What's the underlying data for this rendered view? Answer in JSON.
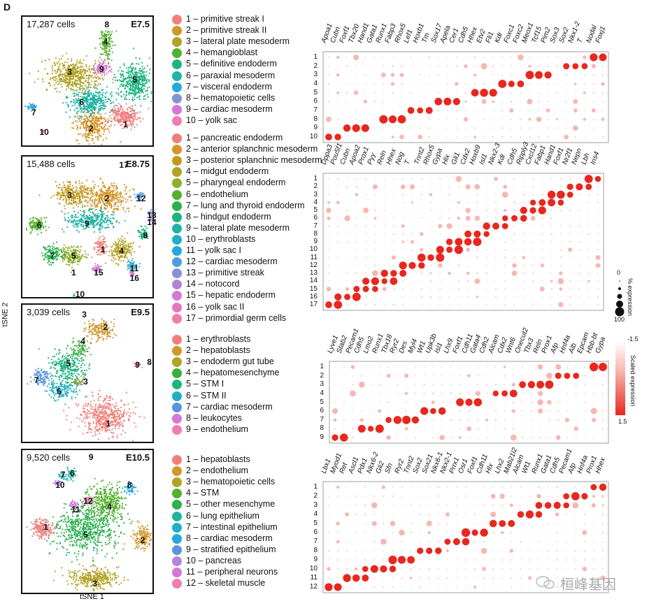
{
  "figure": {
    "panel_letter": "D",
    "axis_y": "tSNE 2",
    "axis_x": "tSNE  1",
    "watermark": "桓峰基因",
    "colors": {
      "red": "#e8271e",
      "light": "#f5b8b1"
    }
  },
  "panels": [
    {
      "cells": "17,287 cells",
      "stage": "E7.5",
      "clusters": [
        {
          "label": "1 – primitive streak I",
          "color": "#f07f7b"
        },
        {
          "label": "2 – primitive streak II",
          "color": "#d4952a"
        },
        {
          "label": "3 – lateral plate mesoderm",
          "color": "#b3a326"
        },
        {
          "label": "4 – hemangioblast",
          "color": "#55b02f"
        },
        {
          "label": "5 – definitive endoderm",
          "color": "#1fb47e"
        },
        {
          "label": "6 – paraxial mesoderm",
          "color": "#20b3a6"
        },
        {
          "label": "7 – visceral endoderm",
          "color": "#26a8dc"
        },
        {
          "label": "8 – hematopoietic cells",
          "color": "#8692d8"
        },
        {
          "label": "9 – cardiac mesoderm",
          "color": "#d576d8"
        },
        {
          "label": "10 – yolk sac",
          "color": "#ee7fb0"
        }
      ],
      "genes": [
        "Apoa1",
        "Cubn",
        "Foxf1",
        "Tbx20",
        "Hand1",
        "Gata1",
        "Runx1",
        "Fabp3",
        "Rhox5",
        "Lef1",
        "Hoxb1",
        "Tm",
        "Sox17",
        "Apela",
        "Cer1",
        "Cdh5",
        "Hhex",
        "Etv2",
        "Fli1",
        "Kdr",
        "Foxc1",
        "Foxc2",
        "Meox1",
        "Tcf15",
        "Pim2",
        "Sox3",
        "Sox2",
        "Nkx1-2",
        "T",
        "Nodal",
        "Foxj1"
      ],
      "rows": [
        "1",
        "2",
        "3",
        "4",
        "5",
        "6",
        "7",
        "8",
        "9",
        "10"
      ],
      "tsne_labels": [
        {
          "t": "8"
        },
        {
          "t": "4"
        },
        {
          "t": "9"
        },
        {
          "t": "3"
        },
        {
          "t": "5"
        },
        {
          "t": "6"
        },
        {
          "t": "7"
        },
        {
          "t": "2"
        },
        {
          "t": "1"
        },
        {
          "t": "10"
        }
      ]
    },
    {
      "cells": "15,488 cells",
      "stage": "E8.75",
      "clusters": [
        {
          "label": "1 – pancreatic endoderm",
          "color": "#f07f7b"
        },
        {
          "label": "2 – anterior splanchnic mesoderm",
          "color": "#d4952a"
        },
        {
          "label": "3 – posterior splanchnic mesoderm",
          "color": "#c19a22"
        },
        {
          "label": "4 – midgut endoderm",
          "color": "#b3a326"
        },
        {
          "label": "5 – pharyngeal endoderm",
          "color": "#8fae2b"
        },
        {
          "label": "6 – endothelium",
          "color": "#55b02f"
        },
        {
          "label": "7 – lung and thyroid endoderm",
          "color": "#2db04f"
        },
        {
          "label": "8 – hindgut endoderm",
          "color": "#1fb47e"
        },
        {
          "label": "9 – lateral plate mesoderm",
          "color": "#20b3a6"
        },
        {
          "label": "10 – erythroblasts",
          "color": "#22aec5"
        },
        {
          "label": "11 – yolk sac I",
          "color": "#26a8dc"
        },
        {
          "label": "12 – cardiac mesoderm",
          "color": "#4d9ee0"
        },
        {
          "label": "13 – primitive streak",
          "color": "#8692d8"
        },
        {
          "label": "14 – notocord",
          "color": "#b285dc"
        },
        {
          "label": "15 – hepatic endoderm",
          "color": "#d576d8"
        },
        {
          "label": "16 – yolk sac II",
          "color": "#e775c0"
        },
        {
          "label": "17 – primordial germ cells",
          "color": "#ee7fa6"
        }
      ],
      "genes": [
        "Dppa3",
        "Pou5f1",
        "Cubn",
        "Apoa2",
        "Prox1",
        "Pyy",
        "Reln",
        "Hhex",
        "Nog",
        "T",
        "Tnnt2",
        "Rhox5",
        "Gypa",
        "Hlx",
        "Gli1",
        "Cdx2",
        "Hoxb9",
        "Isl1",
        "Nkx2-3",
        "Kdr",
        "Cdh5",
        "Ripply3",
        "Cxcl12",
        "Fabp1",
        "Hand1",
        "Foxf1",
        "Nr2f1",
        "Nepn",
        "Lbh",
        "Ins4"
      ],
      "rows": [
        "1",
        "2",
        "3",
        "4",
        "5",
        "6",
        "7",
        "8",
        "9",
        "10",
        "11",
        "12",
        "13",
        "14",
        "15",
        "16",
        "17"
      ],
      "tsne_labels": [
        {
          "t": "17"
        },
        {
          "t": "3"
        },
        {
          "t": "2"
        },
        {
          "t": "12"
        },
        {
          "t": "13"
        },
        {
          "t": "14"
        },
        {
          "t": "6"
        },
        {
          "t": "9"
        },
        {
          "t": "8"
        },
        {
          "t": "7"
        },
        {
          "t": "5"
        },
        {
          "t": "1"
        },
        {
          "t": "4"
        },
        {
          "t": "1"
        },
        {
          "t": "15"
        },
        {
          "t": "11"
        },
        {
          "t": "16"
        },
        {
          "t": "10"
        }
      ]
    },
    {
      "cells": "3,039 cells",
      "stage": "E9.5",
      "clusters": [
        {
          "label": "1 – erythroblasts",
          "color": "#f07f7b"
        },
        {
          "label": "2 – hepatoblasts",
          "color": "#d4952a"
        },
        {
          "label": "3 – endoderm gut tube",
          "color": "#b3a326"
        },
        {
          "label": "4 – hepatomesenchyme",
          "color": "#3aae3a"
        },
        {
          "label": "5 – STM I",
          "color": "#1fb47e"
        },
        {
          "label": "6 – STM II",
          "color": "#22aec5"
        },
        {
          "label": "7 – cardiac mesoderm",
          "color": "#5a93e0"
        },
        {
          "label": "8 – leukocytes",
          "color": "#d576d8"
        },
        {
          "label": "9 – endothelium",
          "color": "#ee7fb0"
        }
      ],
      "genes": [
        "Lyve1",
        "Stab2",
        "Pecam1",
        "Cdh5",
        "Lmo2",
        "Runx1",
        "Tbx18",
        "Ryr2",
        "Des",
        "Myl4",
        "Wt1",
        "Upk3b",
        "Isl1",
        "Lhx9",
        "Foxf1",
        "Cdh11",
        "Gata4",
        "Cdh2",
        "Alcam",
        "Cdx2",
        "Wnt6",
        "Onecut2",
        "Tbx3",
        "Reln",
        "Prox1",
        "Afp",
        "Hnf4a",
        "Alb",
        "Epcam",
        "Hbb-bt",
        "Gypa"
      ],
      "rows": [
        "1",
        "2",
        "3",
        "4",
        "5",
        "6",
        "7",
        "8",
        "9"
      ],
      "tsne_labels": [
        {
          "t": "3"
        },
        {
          "t": "2"
        },
        {
          "t": "4"
        },
        {
          "t": "5"
        },
        {
          "t": "7"
        },
        {
          "t": "6"
        },
        {
          "t": "3"
        },
        {
          "t": "9"
        },
        {
          "t": "8"
        },
        {
          "t": "1"
        }
      ]
    },
    {
      "cells": "9,520 cells",
      "stage": "E10.5",
      "clusters": [
        {
          "label": "1 – hepatoblasts",
          "color": "#f07f7b"
        },
        {
          "label": "2 – endothelium",
          "color": "#d4952a"
        },
        {
          "label": "3 – hematopoietic cells",
          "color": "#b3a326"
        },
        {
          "label": "4 – STM",
          "color": "#55b02f"
        },
        {
          "label": "5 – other mesenchyme",
          "color": "#2db04f"
        },
        {
          "label": "6 – lung epithelium",
          "color": "#1fb4a0"
        },
        {
          "label": "7 – intestinal epithelium",
          "color": "#22aec5"
        },
        {
          "label": "8 – cardiac mesoderm",
          "color": "#26a8dc"
        },
        {
          "label": "9 – stratified epithelium",
          "color": "#5a93e0"
        },
        {
          "label": "10 – pancreas",
          "color": "#b285dc"
        },
        {
          "label": "11 – peripheral neurons",
          "color": "#d576d8"
        },
        {
          "label": "12 – skeletal muscle",
          "color": "#ee7fb0"
        }
      ],
      "genes": [
        "Lbx1",
        "Myod1",
        "Ret",
        "Ascl1",
        "Pdx1",
        "Nkx6-2",
        "Gli2",
        "Sfn",
        "Ryr2",
        "Tnnt2",
        "Sox2",
        "Sox21",
        "Nkx6-1",
        "Nkx2-1",
        "Prrx1",
        "Osr1",
        "Foxf1",
        "Cdh11",
        "Hlx",
        "Lhx2",
        "Mab21l2",
        "Alcam",
        "Wt1",
        "Runx1",
        "Gata1",
        "Cdh5",
        "Pecam1",
        "Afp",
        "Hnf4a",
        "Prox1",
        "Hhex"
      ],
      "rows": [
        "1",
        "2",
        "3",
        "4",
        "5",
        "6",
        "7",
        "8",
        "9",
        "10",
        "11",
        "12"
      ],
      "tsne_labels": [
        {
          "t": "9"
        },
        {
          "t": "7"
        },
        {
          "t": "6"
        },
        {
          "t": "10"
        },
        {
          "t": "8"
        },
        {
          "t": "12"
        },
        {
          "t": "11"
        },
        {
          "t": "4"
        },
        {
          "t": "1"
        },
        {
          "t": "5"
        },
        {
          "t": "2"
        },
        {
          "t": "3"
        }
      ]
    }
  ],
  "size_legend": {
    "title": "% expression",
    "ticks": [
      "0",
      "100"
    ]
  },
  "color_legend": {
    "title": "Scaled expression",
    "ticks": [
      "-1.5",
      "1.5"
    ]
  }
}
